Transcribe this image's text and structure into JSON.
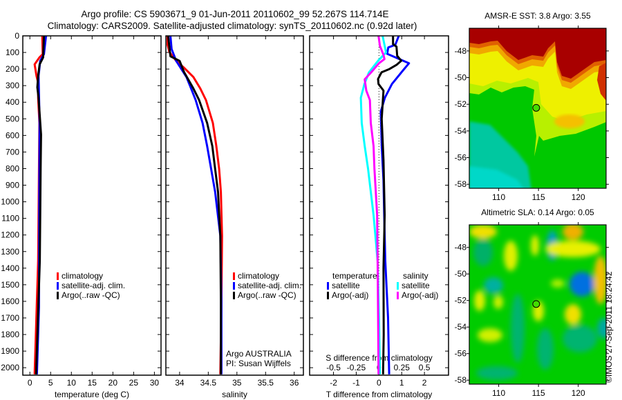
{
  "header": {
    "title_line1": "Argo profile: CS 5903671_9 01-Jun-2011 20110602_99 52.267S 114.714E",
    "title_line2": "Climatology: CARS2009. Satellite-adjusted climatology: synTS_20110602.nc (0.92d later)"
  },
  "credit": "©IMOS 27-Sep-2011 18:24:42",
  "colors": {
    "red": "#ff0000",
    "blue": "#0000ff",
    "black": "#000000",
    "cyan": "#00ffff",
    "magenta": "#ff00ff"
  },
  "chart_data": [
    {
      "type": "line",
      "id": "temperature",
      "xlabel": "temperature (deg C)",
      "xlim": [
        -1.7,
        31.6
      ],
      "xticks": [
        0,
        5,
        10,
        15,
        20,
        25,
        30
      ],
      "xticklabels": [
        "0",
        "5",
        "10",
        "15",
        "20",
        "25",
        "30"
      ],
      "ylim": [
        0,
        2045
      ],
      "yticks": [
        0,
        100,
        200,
        300,
        400,
        500,
        600,
        700,
        800,
        900,
        1000,
        1100,
        1200,
        1300,
        1400,
        1500,
        1600,
        1700,
        1800,
        1900,
        2000
      ],
      "yticklabels": [
        "0",
        "100",
        "200",
        "300",
        "400",
        "500",
        "600",
        "700",
        "800",
        "900",
        "1000",
        "1100",
        "1200",
        "1300",
        "1400",
        "1500",
        "1600",
        "1700",
        "1800",
        "1900",
        "2000"
      ],
      "legend": [
        "climatology",
        "satellite-adj. clim.",
        "Argo(..raw -QC)"
      ],
      "series": [
        {
          "name": "climatology",
          "color": "red",
          "depth": [
            0,
            110,
            130,
            172,
            241,
            283,
            374,
            524,
            802,
            1356,
            2040
          ],
          "values": [
            3.0,
            3.1,
            2.3,
            1.15,
            1.6,
            2.0,
            2.0,
            2.3,
            2.2,
            2.0,
            1.15
          ]
        },
        {
          "name": "satellite-adj. clim.",
          "color": "blue",
          "depth": [
            0,
            110,
            150,
            241,
            524,
            1080,
            1634,
            2040
          ],
          "values": [
            3.9,
            3.4,
            2.5,
            2.1,
            2.35,
            2.25,
            2.2,
            1.7
          ]
        },
        {
          "name": "Argo(..raw -QC)",
          "color": "black",
          "depth": [
            0,
            130,
            172,
            241,
            310,
            374,
            595,
            802,
            1356,
            2040
          ],
          "values": [
            3.4,
            3.2,
            2.35,
            2.0,
            1.8,
            2.1,
            2.7,
            2.6,
            2.4,
            1.5
          ]
        }
      ]
    },
    {
      "type": "line",
      "id": "salinity",
      "xlabel": "salinity",
      "xlim": [
        33.76,
        36.16
      ],
      "xticks": [
        34,
        34.5,
        35,
        35.5,
        36
      ],
      "xticklabels": [
        "34",
        "34.5",
        "35",
        "35.5",
        "36"
      ],
      "ylim": [
        0,
        2045
      ],
      "legend": [
        "climatology",
        "satellite-adj. clim.",
        "Argo(..raw -QC)"
      ],
      "annotation": [
        "Argo AUSTRALIA",
        "PI: Susan Wijffels"
      ],
      "series": [
        {
          "name": "climatology",
          "color": "red",
          "depth": [
            0,
            54,
            96,
            151,
            193,
            248,
            317,
            387,
            525,
            664,
            802,
            941,
            1205,
            1600,
            2040
          ],
          "values": [
            33.79,
            33.79,
            33.82,
            33.94,
            34.08,
            34.24,
            34.36,
            34.46,
            34.58,
            34.64,
            34.69,
            34.72,
            34.74,
            34.73,
            34.71
          ]
        },
        {
          "name": "satellite-adj. clim.",
          "color": "blue",
          "depth": [
            0,
            80,
            151,
            248,
            317,
            387,
            525,
            664,
            802,
            941,
            1205,
            1600,
            2040
          ],
          "values": [
            33.84,
            33.86,
            33.94,
            34.12,
            34.2,
            34.28,
            34.4,
            34.48,
            34.55,
            34.62,
            34.71,
            34.73,
            34.73
          ]
        },
        {
          "name": "Argo(..raw -QC)",
          "color": "black",
          "depth": [
            0,
            123,
            151,
            220,
            317,
            387,
            525,
            664,
            802,
            941,
            1205,
            1600,
            2040
          ],
          "values": [
            33.8,
            33.84,
            34.0,
            34.08,
            34.24,
            34.34,
            34.48,
            34.57,
            34.62,
            34.67,
            34.71,
            34.72,
            34.72
          ]
        }
      ]
    },
    {
      "type": "line",
      "id": "difference",
      "xlabel": "T difference from climatology",
      "xlim": [
        -3.05,
        3.06
      ],
      "xticks": [
        -2,
        -1,
        0,
        1,
        2
      ],
      "xticklabels": [
        "-2",
        "-1",
        "0",
        "1",
        "2"
      ],
      "s_axis_label": "S difference from climatology",
      "s_xlim": [
        -0.763,
        0.765
      ],
      "s_xticks": [
        -0.5,
        -0.25,
        0,
        0.25,
        0.5
      ],
      "s_xticklabels": [
        "-0.5",
        "-0.25",
        "0",
        "0.25",
        "0.5"
      ],
      "ylim": [
        0,
        2045
      ],
      "legend": {
        "temperature_header": "temperature",
        "salinity_header": "salinity",
        "t_satellite": "satellite",
        "t_argo": "Argo(-adj)",
        "s_satellite": "satellite",
        "s_argo": "Argo(-adj)"
      },
      "series": [
        {
          "name": "temperature satellite",
          "color": "blue",
          "axis": "T",
          "depth": [
            0,
            54,
            70,
            108,
            165,
            206,
            290,
            373,
            456,
            664,
            872,
            1080,
            1357,
            1700,
            2040
          ],
          "values": [
            0.87,
            0.72,
            0.41,
            0.36,
            1.32,
            1.07,
            0.57,
            0.26,
            0.08,
            0.12,
            0.2,
            0.23,
            0.28,
            0.4,
            0.45
          ]
        },
        {
          "name": "temperature Argo(-adj)",
          "color": "black",
          "axis": "T",
          "depth": [
            0,
            50,
            65,
            120,
            150,
            175,
            200,
            220,
            260,
            290,
            330,
            500,
            750,
            1080,
            1400,
            1800,
            2040
          ],
          "values": [
            0.62,
            0.62,
            0.77,
            0.8,
            0.98,
            0.77,
            0.46,
            0.11,
            -0.04,
            -0.02,
            0.2,
            0.12,
            0.2,
            0.25,
            0.2,
            0.21,
            0.18
          ]
        },
        {
          "name": "salinity satellite",
          "color": "cyan",
          "axis": "S",
          "depth": [
            0,
            100,
            150,
            220,
            290,
            373,
            525,
            664,
            802,
            1080,
            1357,
            1700,
            2040
          ],
          "values": [
            0.04,
            0.078,
            -0.01,
            -0.11,
            -0.16,
            -0.2,
            -0.19,
            -0.157,
            -0.12,
            -0.06,
            -0.015,
            0.0,
            0.01
          ]
        },
        {
          "name": "salinity Argo(-adj)",
          "color": "magenta",
          "axis": "S",
          "depth": [
            0,
            60,
            115,
            140,
            165,
            220,
            262,
            330,
            387,
            525,
            664,
            802,
            1080,
            1357,
            1700,
            2040
          ],
          "values": [
            -0.005,
            0.01,
            0.05,
            0.06,
            0.0,
            -0.086,
            -0.157,
            -0.14,
            -0.1,
            -0.09,
            -0.06,
            -0.05,
            -0.02,
            -0.015,
            -0.01,
            -0.005
          ]
        }
      ]
    },
    {
      "type": "heatmap",
      "id": "sst-map",
      "title": "AMSR-E SST: 3.8 Argo: 3.55",
      "xlim": [
        106.3,
        123.5
      ],
      "ylim": [
        -46.3,
        -58.3
      ],
      "xticks": [
        110,
        115,
        120
      ],
      "xticklabels": [
        "110",
        "115",
        "120"
      ],
      "yticks": [
        -48,
        -50,
        -52,
        -54,
        -56,
        -58
      ],
      "yticklabels": [
        "-48",
        "-50",
        "-52",
        "-54",
        "-56",
        "-58"
      ],
      "marker": {
        "lon": 114.714,
        "lat": -52.267
      }
    },
    {
      "type": "heatmap",
      "id": "sla-map",
      "title": "Altimetric SLA: 0.14 Argo: 0.05",
      "xlim": [
        106.3,
        123.5
      ],
      "ylim": [
        -46.3,
        -58.3
      ],
      "xticks": [
        110,
        115,
        120
      ],
      "xticklabels": [
        "110",
        "115",
        "120"
      ],
      "yticks": [
        -48,
        -50,
        -52,
        -54,
        -56,
        -58
      ],
      "yticklabels": [
        "-48",
        "-50",
        "-52",
        "-54",
        "-56",
        "-58"
      ],
      "marker": {
        "lon": 114.714,
        "lat": -52.267
      }
    }
  ]
}
